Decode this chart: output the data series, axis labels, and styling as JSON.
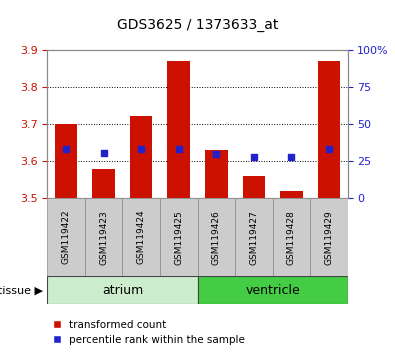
{
  "title": "GDS3625 / 1373633_at",
  "samples": [
    "GSM119422",
    "GSM119423",
    "GSM119424",
    "GSM119425",
    "GSM119426",
    "GSM119427",
    "GSM119428",
    "GSM119429"
  ],
  "bar_tops": [
    3.7,
    3.58,
    3.72,
    3.87,
    3.63,
    3.56,
    3.52,
    3.87
  ],
  "bar_base": 3.5,
  "blue_y": [
    3.632,
    3.622,
    3.633,
    3.633,
    3.618,
    3.612,
    3.612,
    3.633
  ],
  "ylim": [
    3.5,
    3.9
  ],
  "yticks": [
    3.5,
    3.6,
    3.7,
    3.8,
    3.9
  ],
  "right_ylim": [
    0,
    100
  ],
  "right_yticks": [
    0,
    25,
    50,
    75,
    100
  ],
  "right_yticklabels": [
    "0",
    "25",
    "50",
    "75",
    "100%"
  ],
  "bar_color": "#cc1100",
  "blue_color": "#2222cc",
  "bar_width": 0.6,
  "tissue_groups": [
    {
      "label": "atrium",
      "samples": [
        0,
        1,
        2,
        3
      ],
      "light_color": "#cceecc",
      "dark_color": "#44cc44"
    },
    {
      "label": "ventricle",
      "samples": [
        4,
        5,
        6,
        7
      ],
      "light_color": "#44cc44",
      "dark_color": "#44cc44"
    }
  ],
  "tissue_label": "tissue",
  "tick_color_left": "#cc1100",
  "tick_color_right": "#2222cc",
  "legend_red_label": "transformed count",
  "legend_blue_label": "percentile rank within the sample",
  "sample_bg_color": "#cccccc"
}
